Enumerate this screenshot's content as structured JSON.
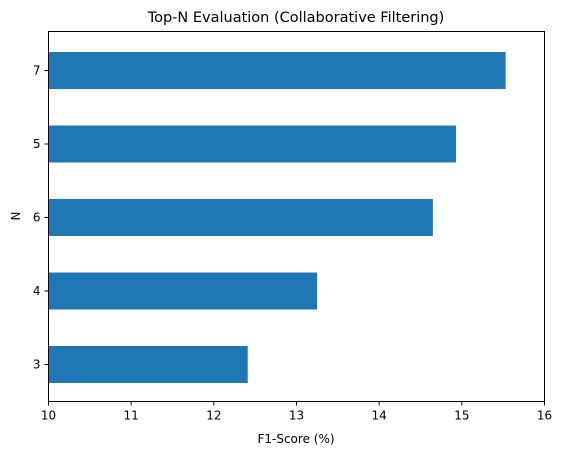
{
  "chart_data": {
    "type": "bar",
    "orientation": "horizontal",
    "title": "Top-N Evaluation (Collaborative Filtering)",
    "xlabel": "F1-Score (%)",
    "ylabel": "N",
    "categories": [
      "3",
      "4",
      "6",
      "5",
      "7"
    ],
    "values": [
      12.41,
      13.25,
      14.65,
      14.93,
      15.53
    ],
    "xlim": [
      10,
      16
    ],
    "xticks": [
      "10",
      "11",
      "12",
      "13",
      "14",
      "15",
      "16"
    ],
    "grid": false,
    "bar_color": "#1f77b4"
  }
}
